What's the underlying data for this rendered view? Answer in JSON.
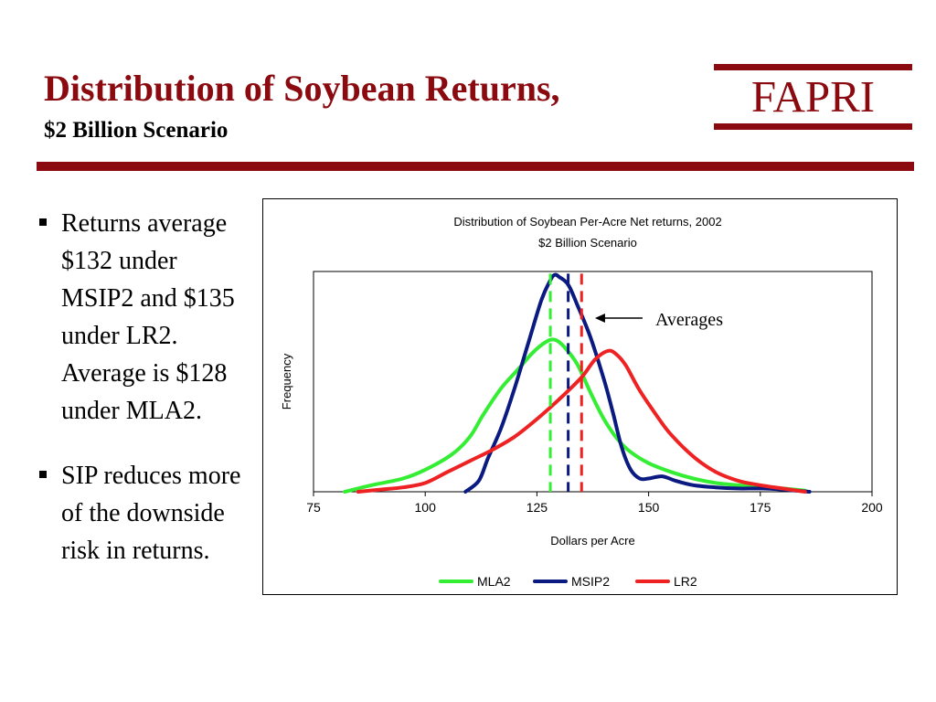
{
  "slide": {
    "title": "Distribution of Soybean Returns,",
    "subtitle": "$2 Billion Scenario",
    "logo_text": "FAPRI",
    "accent_color": "#8b0a10"
  },
  "bullets": [
    "Returns average $132 under MSIP2 and $135 under LR2. Average is $128 under MLA2.",
    "SIP reduces more of the downside risk in returns."
  ],
  "chart_data": {
    "type": "line",
    "title": "Distribution of Soybean Per-Acre Net returns, 2002",
    "subtitle": "$2 Billion Scenario",
    "xlabel": "Dollars per Acre",
    "ylabel": "Frequency",
    "xlim": [
      75,
      200
    ],
    "ylim": [
      0,
      1
    ],
    "x_ticks": [
      "75",
      "100",
      "125",
      "150",
      "175",
      "200"
    ],
    "grid": false,
    "legend": "bottom",
    "annotation": "Averages",
    "series": [
      {
        "name": "MLA2",
        "color": "#33ee33",
        "points": [
          [
            82,
            0.0
          ],
          [
            88,
            0.03
          ],
          [
            95,
            0.06
          ],
          [
            100,
            0.1
          ],
          [
            106,
            0.17
          ],
          [
            110,
            0.25
          ],
          [
            113,
            0.35
          ],
          [
            117,
            0.47
          ],
          [
            121,
            0.56
          ],
          [
            124,
            0.63
          ],
          [
            127,
            0.68
          ],
          [
            129,
            0.69
          ],
          [
            131,
            0.66
          ],
          [
            134,
            0.58
          ],
          [
            137,
            0.45
          ],
          [
            140,
            0.33
          ],
          [
            143,
            0.24
          ],
          [
            146,
            0.18
          ],
          [
            150,
            0.13
          ],
          [
            155,
            0.09
          ],
          [
            160,
            0.06
          ],
          [
            165,
            0.04
          ],
          [
            170,
            0.03
          ],
          [
            175,
            0.02
          ],
          [
            180,
            0.015
          ],
          [
            185,
            0.005
          ]
        ],
        "average": 128
      },
      {
        "name": "MSIP2",
        "color": "#0a1a80",
        "points": [
          [
            109,
            0.0
          ],
          [
            112,
            0.05
          ],
          [
            114,
            0.15
          ],
          [
            117,
            0.29
          ],
          [
            120,
            0.47
          ],
          [
            123,
            0.67
          ],
          [
            126,
            0.87
          ],
          [
            128,
            0.96
          ],
          [
            129,
            0.985
          ],
          [
            130,
            0.975
          ],
          [
            132,
            0.94
          ],
          [
            134,
            0.85
          ],
          [
            137,
            0.7
          ],
          [
            140,
            0.51
          ],
          [
            142,
            0.36
          ],
          [
            144,
            0.2
          ],
          [
            146,
            0.1
          ],
          [
            148,
            0.06
          ],
          [
            150,
            0.06
          ],
          [
            153,
            0.07
          ],
          [
            156,
            0.05
          ],
          [
            160,
            0.03
          ],
          [
            165,
            0.02
          ],
          [
            170,
            0.015
          ],
          [
            175,
            0.015
          ],
          [
            180,
            0.01
          ],
          [
            186,
            0.0
          ]
        ],
        "average": 132
      },
      {
        "name": "LR2",
        "color": "#ee2222",
        "points": [
          [
            85,
            0.0
          ],
          [
            90,
            0.01
          ],
          [
            95,
            0.02
          ],
          [
            100,
            0.04
          ],
          [
            105,
            0.09
          ],
          [
            110,
            0.14
          ],
          [
            115,
            0.19
          ],
          [
            120,
            0.25
          ],
          [
            125,
            0.33
          ],
          [
            130,
            0.42
          ],
          [
            135,
            0.52
          ],
          [
            138,
            0.6
          ],
          [
            141,
            0.64
          ],
          [
            143,
            0.62
          ],
          [
            145,
            0.57
          ],
          [
            148,
            0.46
          ],
          [
            152,
            0.34
          ],
          [
            155,
            0.26
          ],
          [
            160,
            0.16
          ],
          [
            165,
            0.09
          ],
          [
            170,
            0.05
          ],
          [
            175,
            0.03
          ],
          [
            180,
            0.015
          ],
          [
            185,
            0.0
          ]
        ],
        "average": 135
      }
    ]
  }
}
